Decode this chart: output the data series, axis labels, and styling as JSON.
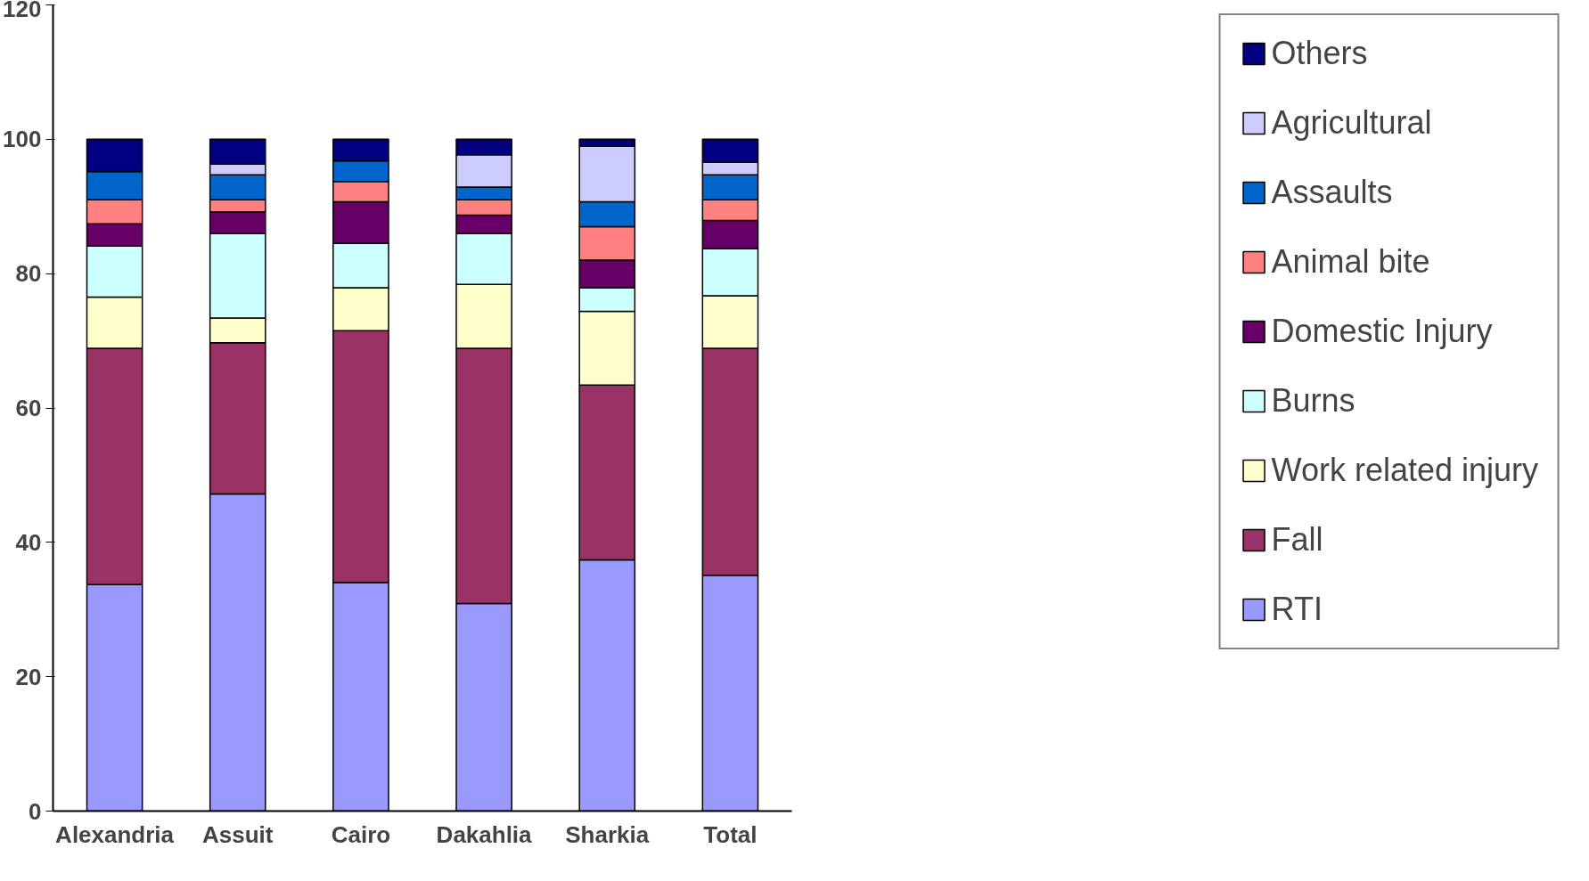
{
  "chart_data": {
    "type": "bar",
    "stacked": true,
    "categories": [
      "Alexandria",
      "Assuit",
      "Cairo",
      "Dakahlia",
      "Sharkia",
      "Total"
    ],
    "series": [
      {
        "name": "RTI",
        "color": "#9999ff",
        "values": [
          33.7,
          47.2,
          34.0,
          30.9,
          37.4,
          35.1
        ]
      },
      {
        "name": "Fall",
        "color": "#993366",
        "values": [
          35.2,
          22.5,
          37.5,
          38.0,
          26.0,
          33.8
        ]
      },
      {
        "name": "Work related injury",
        "color": "#ffffcc",
        "values": [
          7.6,
          3.7,
          6.4,
          9.5,
          11.0,
          7.8
        ]
      },
      {
        "name": "Burns",
        "color": "#ccffff",
        "values": [
          7.6,
          12.6,
          6.6,
          7.6,
          3.5,
          7.0
        ]
      },
      {
        "name": "Domestic Injury",
        "color": "#660066",
        "values": [
          3.3,
          3.2,
          6.2,
          2.7,
          4.1,
          4.2
        ]
      },
      {
        "name": "Animal bite",
        "color": "#ff8080",
        "values": [
          3.6,
          1.8,
          3.0,
          2.3,
          5.0,
          3.1
        ]
      },
      {
        "name": "Assaults",
        "color": "#0066cc",
        "values": [
          4.2,
          3.7,
          3.1,
          1.9,
          3.7,
          3.7
        ]
      },
      {
        "name": "Agricultural",
        "color": "#ccccff",
        "values": [
          0,
          1.6,
          0,
          4.8,
          8.3,
          1.9
        ]
      },
      {
        "name": "Others",
        "color": "#000080",
        "values": [
          4.8,
          3.7,
          3.2,
          2.3,
          1.0,
          3.4
        ]
      }
    ],
    "ylim": [
      0,
      120
    ],
    "yticks": [
      0,
      20,
      40,
      60,
      80,
      100,
      120
    ],
    "grid": false,
    "legend": "right"
  }
}
